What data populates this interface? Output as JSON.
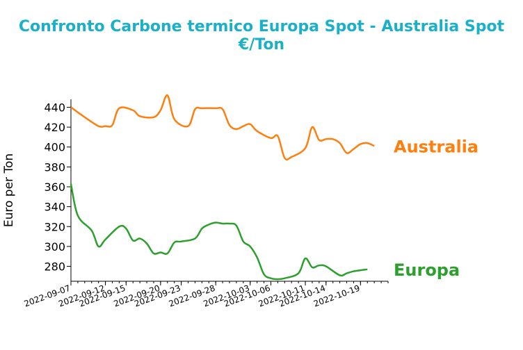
{
  "chart_data": {
    "type": "line",
    "title_line1": "Confronto Carbone termico Europa Spot - Australia Spot",
    "title_line2": "€/Ton",
    "ylabel": "Euro per Ton",
    "xlabel": "",
    "ylim": [
      265,
      448
    ],
    "yticks": [
      280,
      300,
      320,
      340,
      360,
      380,
      400,
      420,
      440
    ],
    "x_start": "2022-09-07",
    "x_end": "2022-10-23",
    "xtick_labels": [
      "2022-09-07",
      "2022-09-12",
      "2022-09-15",
      "2022-09-20",
      "2022-09-23",
      "2022-09-28",
      "2022-10-03",
      "2022-10-06",
      "2022-10-11",
      "2022-10-14",
      "2022-10-19"
    ],
    "series": [
      {
        "name": "Australia",
        "color": "#ff7f0e",
        "points": [
          [
            "2022-09-07",
            440
          ],
          [
            "2022-09-09",
            430
          ],
          [
            "2022-09-11",
            421
          ],
          [
            "2022-09-12",
            421
          ],
          [
            "2022-09-13",
            422
          ],
          [
            "2022-09-14",
            439
          ],
          [
            "2022-09-16",
            437
          ],
          [
            "2022-09-17",
            431
          ],
          [
            "2022-09-19",
            430
          ],
          [
            "2022-09-20",
            437
          ],
          [
            "2022-09-21",
            452
          ],
          [
            "2022-09-22",
            428
          ],
          [
            "2022-09-24",
            421
          ],
          [
            "2022-09-25",
            438
          ],
          [
            "2022-09-26",
            439
          ],
          [
            "2022-09-28",
            439
          ],
          [
            "2022-09-29",
            438
          ],
          [
            "2022-09-30",
            422
          ],
          [
            "2022-10-01",
            418
          ],
          [
            "2022-10-02",
            421
          ],
          [
            "2022-10-03",
            423
          ],
          [
            "2022-10-04",
            416
          ],
          [
            "2022-10-06",
            409
          ],
          [
            "2022-10-07",
            411
          ],
          [
            "2022-10-08",
            389
          ],
          [
            "2022-10-09",
            390
          ],
          [
            "2022-10-11",
            399
          ],
          [
            "2022-10-12",
            420
          ],
          [
            "2022-10-13",
            407
          ],
          [
            "2022-10-14",
            408
          ],
          [
            "2022-10-15",
            408
          ],
          [
            "2022-10-16",
            404
          ],
          [
            "2022-10-17",
            394
          ],
          [
            "2022-10-18",
            398
          ],
          [
            "2022-10-19",
            403
          ],
          [
            "2022-10-20",
            404
          ],
          [
            "2022-10-21",
            401
          ]
        ]
      },
      {
        "name": "Europa",
        "color": "#2ca02c",
        "points": [
          [
            "2022-09-07",
            363
          ],
          [
            "2022-09-08",
            331
          ],
          [
            "2022-09-10",
            316
          ],
          [
            "2022-09-11",
            300
          ],
          [
            "2022-09-12",
            307
          ],
          [
            "2022-09-14",
            320
          ],
          [
            "2022-09-15",
            318
          ],
          [
            "2022-09-16",
            306
          ],
          [
            "2022-09-17",
            308
          ],
          [
            "2022-09-18",
            303
          ],
          [
            "2022-09-19",
            293
          ],
          [
            "2022-09-20",
            294
          ],
          [
            "2022-09-21",
            293
          ],
          [
            "2022-09-22",
            304
          ],
          [
            "2022-09-23",
            305
          ],
          [
            "2022-09-25",
            308
          ],
          [
            "2022-09-26",
            318
          ],
          [
            "2022-09-27",
            322
          ],
          [
            "2022-09-28",
            324
          ],
          [
            "2022-09-29",
            323
          ],
          [
            "2022-09-30",
            323
          ],
          [
            "2022-10-01",
            321
          ],
          [
            "2022-10-02",
            305
          ],
          [
            "2022-10-03",
            300
          ],
          [
            "2022-10-04",
            289
          ],
          [
            "2022-10-05",
            272
          ],
          [
            "2022-10-06",
            268
          ],
          [
            "2022-10-07",
            267
          ],
          [
            "2022-10-08",
            268
          ],
          [
            "2022-10-10",
            273
          ],
          [
            "2022-10-11",
            288
          ],
          [
            "2022-10-12",
            279
          ],
          [
            "2022-10-13",
            281
          ],
          [
            "2022-10-14",
            280
          ],
          [
            "2022-10-16",
            271
          ],
          [
            "2022-10-17",
            273
          ],
          [
            "2022-10-18",
            275
          ],
          [
            "2022-10-20",
            277
          ]
        ]
      }
    ],
    "grid": false,
    "legend": "none"
  }
}
